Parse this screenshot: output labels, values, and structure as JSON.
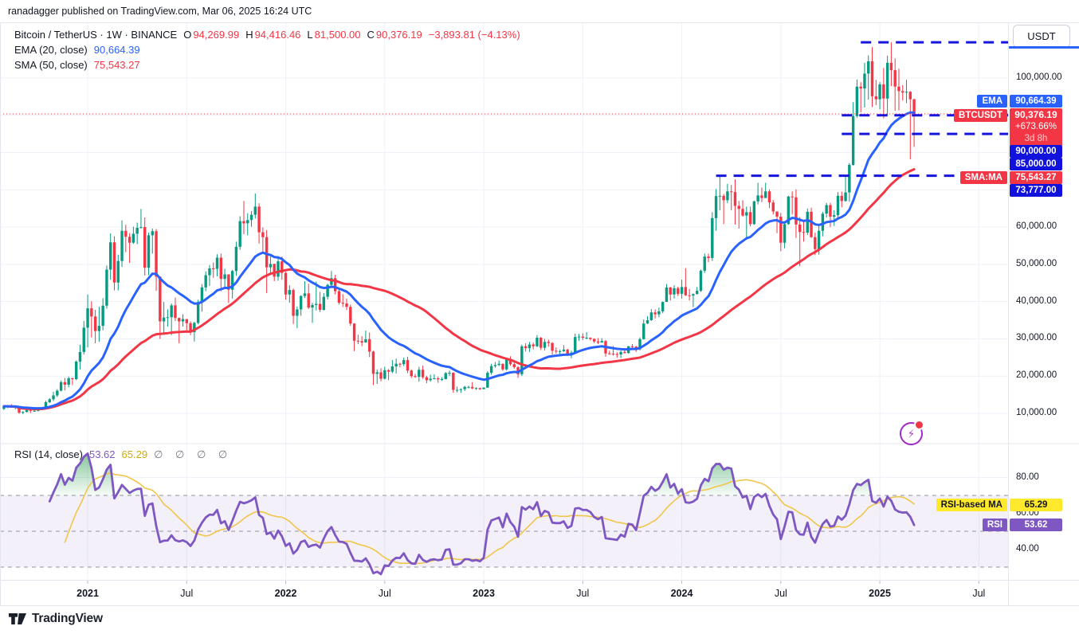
{
  "attribution": "ranadagger published on TradingView.com, Mar 06, 2025 16:24 UTC",
  "header": {
    "title": "Bitcoin / TetherUS · 1W · BINANCE",
    "ohlc": {
      "o_label": "O",
      "o_value": "94,269.99",
      "h_label": "H",
      "h_value": "94,416.46",
      "l_label": "L",
      "l_value": "81,500.00",
      "c_label": "C",
      "c_value": "90,376.19",
      "change": "−3,893.81 (−4.13%)"
    },
    "ema": {
      "label": "EMA (20, close)",
      "value": "90,664.39"
    },
    "sma": {
      "label": "SMA (50, close)",
      "value": "75,543.27"
    }
  },
  "rsi_pane": {
    "label": "RSI (14, close)",
    "rsi_value": "53.62",
    "ma_value": "65.29",
    "hidden_values": "∅ ∅ ∅ ∅"
  },
  "price_scale": {
    "currency_button": "USDT",
    "ticks": [
      [
        100000,
        "100,000.00"
      ],
      [
        60000,
        "60,000.00"
      ],
      [
        50000,
        "50,000.00"
      ],
      [
        40000,
        "40,000.00"
      ],
      [
        30000,
        "30,000.00"
      ],
      [
        20000,
        "20,000.00"
      ],
      [
        10000,
        "10,000.00"
      ]
    ],
    "tags": {
      "ema": "EMA",
      "symbol": "BTCUSDT",
      "sma": "SMA:MA"
    },
    "badges": {
      "ema_value": "90,664.39",
      "symbol_value": "90,376.19",
      "symbol_change_pct": "+673.66%",
      "symbol_countdown": "3d 8h",
      "sma_value": "75,543.27",
      "levels": [
        "90,000.00",
        "85,000.00",
        "73,777.00"
      ]
    }
  },
  "rsi_scale": {
    "ticks": [
      [
        80,
        "80.00"
      ],
      [
        60,
        "60.00"
      ],
      [
        40,
        "40.00"
      ]
    ],
    "tags": {
      "ma": "RSI-based MA",
      "rsi": "RSI"
    },
    "badges": {
      "ma_value": "65.29",
      "rsi_value": "53.62"
    }
  },
  "time_axis": {
    "ticks": [
      [
        22,
        "2021",
        1
      ],
      [
        48,
        "Jul",
        0
      ],
      [
        74,
        "2022",
        1
      ],
      [
        100,
        "Jul",
        0
      ],
      [
        126,
        "2023",
        1
      ],
      [
        152,
        "Jul",
        0
      ],
      [
        178,
        "2024",
        1
      ],
      [
        204,
        "Jul",
        0
      ],
      [
        230,
        "2025",
        1
      ],
      [
        256,
        "Jul",
        0
      ]
    ]
  },
  "footer": {
    "logo_text": "TradingView"
  },
  "colors": {
    "up": "#089981",
    "down": "#f23645",
    "ema": "#2962ff",
    "sma": "#f23645",
    "rsi": "#7e57c2",
    "rsi_ma": "#f0c64a",
    "rsi_ma_badge": "#ffe92c",
    "drawing": "#1515dd",
    "level_badge": "#1212dd",
    "accent_red": "#f23645",
    "accent_blue": "#2962ff",
    "text": "#131722",
    "muted": "#787b86",
    "grid": "#eef1f7",
    "border": "#e4e7ee"
  },
  "chart_data": {
    "type": "candlestick",
    "title": "Bitcoin / TetherUS weekly (BINANCE) with EMA(20), SMA(50), RSI(14)",
    "symbol": "BTCUSDT",
    "exchange": "BINANCE",
    "timeframe": "1W",
    "unit": 1000,
    "start_week": "2020-08-03",
    "first_open": 11.2,
    "candles_hlc": [
      [
        12.1,
        10.9,
        11.9
      ],
      [
        12.0,
        11.4,
        11.9
      ],
      [
        12.4,
        11.5,
        11.7
      ],
      [
        11.8,
        11.1,
        11.7
      ],
      [
        12.0,
        9.9,
        10.2
      ],
      [
        10.6,
        9.8,
        10.4
      ],
      [
        11.1,
        10.2,
        10.9
      ],
      [
        11.0,
        10.1,
        10.7
      ],
      [
        10.95,
        10.4,
        10.7
      ],
      [
        11.5,
        10.5,
        11.4
      ],
      [
        11.7,
        11.2,
        11.5
      ],
      [
        13.4,
        11.4,
        13.0
      ],
      [
        14.1,
        12.8,
        13.8
      ],
      [
        15.8,
        13.3,
        14.8
      ],
      [
        16.5,
        14.4,
        16.1
      ],
      [
        18.8,
        15.9,
        18.4
      ],
      [
        19.5,
        16.2,
        17.7
      ],
      [
        19.9,
        17.0,
        19.4
      ],
      [
        19.6,
        17.6,
        19.2
      ],
      [
        24.2,
        18.9,
        23.9
      ],
      [
        28.4,
        21.8,
        26.5
      ],
      [
        34.8,
        25.8,
        33.0
      ],
      [
        41.9,
        27.7,
        38.2
      ],
      [
        40.1,
        30.4,
        36.0
      ],
      [
        37.8,
        28.8,
        32.1
      ],
      [
        38.6,
        29.2,
        33.5
      ],
      [
        40.9,
        32.3,
        38.9
      ],
      [
        49.7,
        38.1,
        48.6
      ],
      [
        58.3,
        45.9,
        55.9
      ],
      [
        57.5,
        43.0,
        45.1
      ],
      [
        52.6,
        43.0,
        50.9
      ],
      [
        61.8,
        49.3,
        59.0
      ],
      [
        60.6,
        53.3,
        57.4
      ],
      [
        58.4,
        50.4,
        55.8
      ],
      [
        60.1,
        55.5,
        58.2
      ],
      [
        61.2,
        55.4,
        59.8
      ],
      [
        64.9,
        59.6,
        60.0
      ],
      [
        62.6,
        47.0,
        49.1
      ],
      [
        58.5,
        47.1,
        57.8
      ],
      [
        59.6,
        52.9,
        58.9
      ],
      [
        59.5,
        42.9,
        46.7
      ],
      [
        46.8,
        30.0,
        34.7
      ],
      [
        39.9,
        31.1,
        35.7
      ],
      [
        37.9,
        33.3,
        35.8
      ],
      [
        39.5,
        31.0,
        39.0
      ],
      [
        41.1,
        34.8,
        35.6
      ],
      [
        35.7,
        28.8,
        34.7
      ],
      [
        36.6,
        33.3,
        35.3
      ],
      [
        35.3,
        32.3,
        34.2
      ],
      [
        34.7,
        31.0,
        31.8
      ],
      [
        34.6,
        29.3,
        34.3
      ],
      [
        40.5,
        33.9,
        39.9
      ],
      [
        44.7,
        37.3,
        43.8
      ],
      [
        48.1,
        42.8,
        47.1
      ],
      [
        49.8,
        44.2,
        48.9
      ],
      [
        50.5,
        46.4,
        48.8
      ],
      [
        52.7,
        46.8,
        51.8
      ],
      [
        52.9,
        42.8,
        46.1
      ],
      [
        48.8,
        43.4,
        47.3
      ],
      [
        47.3,
        39.6,
        43.2
      ],
      [
        48.5,
        40.8,
        48.2
      ],
      [
        56.1,
        46.9,
        54.7
      ],
      [
        62.9,
        53.9,
        61.6
      ],
      [
        67.0,
        58.1,
        61.0
      ],
      [
        63.7,
        57.8,
        61.9
      ],
      [
        64.3,
        60.1,
        63.3
      ],
      [
        69.0,
        62.3,
        65.5
      ],
      [
        66.4,
        55.6,
        58.6
      ],
      [
        59.9,
        53.5,
        57.3
      ],
      [
        59.2,
        42.3,
        49.2
      ],
      [
        52.1,
        47.1,
        50.1
      ],
      [
        50.2,
        45.5,
        46.7
      ],
      [
        51.9,
        45.6,
        50.8
      ],
      [
        52.1,
        45.9,
        47.7
      ],
      [
        48.0,
        40.5,
        41.9
      ],
      [
        44.4,
        39.7,
        43.1
      ],
      [
        43.5,
        34.0,
        36.2
      ],
      [
        38.7,
        32.9,
        37.9
      ],
      [
        41.7,
        36.2,
        41.5
      ],
      [
        45.5,
        41.0,
        42.2
      ],
      [
        44.8,
        38.0,
        38.4
      ],
      [
        39.7,
        34.3,
        39.1
      ],
      [
        45.4,
        37.6,
        39.4
      ],
      [
        42.6,
        37.2,
        37.8
      ],
      [
        42.3,
        37.6,
        41.3
      ],
      [
        44.8,
        40.6,
        44.5
      ],
      [
        48.2,
        44.3,
        46.3
      ],
      [
        47.2,
        41.9,
        42.8
      ],
      [
        43.4,
        39.2,
        39.7
      ],
      [
        42.0,
        38.6,
        39.5
      ],
      [
        40.8,
        37.7,
        38.6
      ],
      [
        39.2,
        33.5,
        34.1
      ],
      [
        34.2,
        26.7,
        29.5
      ],
      [
        31.1,
        28.6,
        29.4
      ],
      [
        30.7,
        28.0,
        29.0
      ],
      [
        32.2,
        29.1,
        29.9
      ],
      [
        31.7,
        25.1,
        26.6
      ],
      [
        26.8,
        17.6,
        20.6
      ],
      [
        21.8,
        17.9,
        21.0
      ],
      [
        22.1,
        18.6,
        19.3
      ],
      [
        22.5,
        19.1,
        21.6
      ],
      [
        21.9,
        18.9,
        21.2
      ],
      [
        24.3,
        20.8,
        22.6
      ],
      [
        24.7,
        20.7,
        23.3
      ],
      [
        23.6,
        22.4,
        23.2
      ],
      [
        25.0,
        22.7,
        24.3
      ],
      [
        25.2,
        20.8,
        21.5
      ],
      [
        21.8,
        19.5,
        20.0
      ],
      [
        20.6,
        19.5,
        19.8
      ],
      [
        22.5,
        18.5,
        21.7
      ],
      [
        22.8,
        19.3,
        19.7
      ],
      [
        20.1,
        18.1,
        18.9
      ],
      [
        20.4,
        18.5,
        19.3
      ],
      [
        20.5,
        19.1,
        19.4
      ],
      [
        19.9,
        18.2,
        19.1
      ],
      [
        19.7,
        18.7,
        19.2
      ],
      [
        21.1,
        19.1,
        20.8
      ],
      [
        21.5,
        20.0,
        20.9
      ],
      [
        21.0,
        15.5,
        16.3
      ],
      [
        17.2,
        15.6,
        16.3
      ],
      [
        16.7,
        15.5,
        16.5
      ],
      [
        17.4,
        16.0,
        17.1
      ],
      [
        17.4,
        16.7,
        17.1
      ],
      [
        18.4,
        16.5,
        16.7
      ],
      [
        17.0,
        16.3,
        16.8
      ],
      [
        16.9,
        16.3,
        16.5
      ],
      [
        17.0,
        16.5,
        16.9
      ],
      [
        21.3,
        16.9,
        20.9
      ],
      [
        23.3,
        20.4,
        22.7
      ],
      [
        23.8,
        22.3,
        23.0
      ],
      [
        24.2,
        22.7,
        23.3
      ],
      [
        23.4,
        21.4,
        21.8
      ],
      [
        25.0,
        21.5,
        24.6
      ],
      [
        25.3,
        22.8,
        23.2
      ],
      [
        23.9,
        22.0,
        22.4
      ],
      [
        22.7,
        19.5,
        20.5
      ],
      [
        28.4,
        20.0,
        28.0
      ],
      [
        28.8,
        26.6,
        27.5
      ],
      [
        29.2,
        26.5,
        28.5
      ],
      [
        29.0,
        27.2,
        28.0
      ],
      [
        31.0,
        27.8,
        30.3
      ],
      [
        30.5,
        27.0,
        27.6
      ],
      [
        30.0,
        26.9,
        29.2
      ],
      [
        29.8,
        27.9,
        28.9
      ],
      [
        29.1,
        25.8,
        26.8
      ],
      [
        27.7,
        26.0,
        26.7
      ],
      [
        27.1,
        25.9,
        26.7
      ],
      [
        28.3,
        26.5,
        27.1
      ],
      [
        27.4,
        25.4,
        25.9
      ],
      [
        26.8,
        24.8,
        26.3
      ],
      [
        31.4,
        26.2,
        30.5
      ],
      [
        31.3,
        29.5,
        30.6
      ],
      [
        31.5,
        29.7,
        30.3
      ],
      [
        31.8,
        29.9,
        30.3
      ],
      [
        30.4,
        29.6,
        30.0
      ],
      [
        30.1,
        28.9,
        29.3
      ],
      [
        30.2,
        28.6,
        29.0
      ],
      [
        30.2,
        29.1,
        29.4
      ],
      [
        29.7,
        25.2,
        26.1
      ],
      [
        26.8,
        25.7,
        26.0
      ],
      [
        28.1,
        25.5,
        25.9
      ],
      [
        26.4,
        24.9,
        25.8
      ],
      [
        26.9,
        24.8,
        26.5
      ],
      [
        27.5,
        26.1,
        26.2
      ],
      [
        28.1,
        26.0,
        28.0
      ],
      [
        28.6,
        27.2,
        27.9
      ],
      [
        28.1,
        26.5,
        27.2
      ],
      [
        30.4,
        26.9,
        29.9
      ],
      [
        35.2,
        29.8,
        34.1
      ],
      [
        36.1,
        34.0,
        35.0
      ],
      [
        38.0,
        34.8,
        37.1
      ],
      [
        37.9,
        35.5,
        36.6
      ],
      [
        38.4,
        35.8,
        37.4
      ],
      [
        40.0,
        36.9,
        39.9
      ],
      [
        44.7,
        39.9,
        43.8
      ],
      [
        43.9,
        40.3,
        41.9
      ],
      [
        44.4,
        40.8,
        43.6
      ],
      [
        44.0,
        41.5,
        42.1
      ],
      [
        45.9,
        40.8,
        43.9
      ],
      [
        49.0,
        41.5,
        41.7
      ],
      [
        43.4,
        40.3,
        41.6
      ],
      [
        42.2,
        38.5,
        42.0
      ],
      [
        43.9,
        41.9,
        42.9
      ],
      [
        48.6,
        42.6,
        48.3
      ],
      [
        52.9,
        47.7,
        52.1
      ],
      [
        52.9,
        50.6,
        51.7
      ],
      [
        64.0,
        50.9,
        62.4
      ],
      [
        70.2,
        59.0,
        68.3
      ],
      [
        73.8,
        64.5,
        68.4
      ],
      [
        68.9,
        60.8,
        67.2
      ],
      [
        71.6,
        66.4,
        69.6
      ],
      [
        71.3,
        64.5,
        69.4
      ],
      [
        72.8,
        60.7,
        65.7
      ],
      [
        67.0,
        59.6,
        64.9
      ],
      [
        67.2,
        62.8,
        63.1
      ],
      [
        65.5,
        56.6,
        64.0
      ],
      [
        65.5,
        60.2,
        60.8
      ],
      [
        67.1,
        60.6,
        66.9
      ],
      [
        71.9,
        66.1,
        68.5
      ],
      [
        70.6,
        66.7,
        67.8
      ],
      [
        71.9,
        68.5,
        69.6
      ],
      [
        70.1,
        65.1,
        66.6
      ],
      [
        67.3,
        63.4,
        64.2
      ],
      [
        63.1,
        58.4,
        62.8
      ],
      [
        63.8,
        53.5,
        55.8
      ],
      [
        61.5,
        54.3,
        60.8
      ],
      [
        68.4,
        60.6,
        68.2
      ],
      [
        69.6,
        63.4,
        68.0
      ],
      [
        70.1,
        57.1,
        60.7
      ],
      [
        62.7,
        49.5,
        58.7
      ],
      [
        61.8,
        56.1,
        58.5
      ],
      [
        65.0,
        57.9,
        64.1
      ],
      [
        65.2,
        57.1,
        57.3
      ],
      [
        58.5,
        52.5,
        54.1
      ],
      [
        60.6,
        52.6,
        59.0
      ],
      [
        64.1,
        57.5,
        63.6
      ],
      [
        66.5,
        62.6,
        65.9
      ],
      [
        66.5,
        60.0,
        62.8
      ],
      [
        64.5,
        60.3,
        63.2
      ],
      [
        69.4,
        62.5,
        68.4
      ],
      [
        69.5,
        65.3,
        67.0
      ],
      [
        73.6,
        66.8,
        69.3
      ],
      [
        77.2,
        66.8,
        76.7
      ],
      [
        93.5,
        76.5,
        89.8
      ],
      [
        99.6,
        89.4,
        97.7
      ],
      [
        98.9,
        90.8,
        97.2
      ],
      [
        104.1,
        92.1,
        101.2
      ],
      [
        106.1,
        94.2,
        104.5
      ],
      [
        108.3,
        92.2,
        95.1
      ],
      [
        99.5,
        92.7,
        94.3
      ],
      [
        98.9,
        91.6,
        98.3
      ],
      [
        102.7,
        89.2,
        94.5
      ],
      [
        106.0,
        89.7,
        104.1
      ],
      [
        109.6,
        97.8,
        102.1
      ],
      [
        105.3,
        91.2,
        97.7
      ],
      [
        102.5,
        91.3,
        96.5
      ],
      [
        98.1,
        94.0,
        96.1
      ],
      [
        99.5,
        93.3,
        96.3
      ],
      [
        96.5,
        78.2,
        94.3
      ],
      [
        94.42,
        81.5,
        90.38
      ]
    ],
    "indicators": {
      "ema_period": 20,
      "sma_period": 50,
      "rsi_period": 14,
      "rsi_ma_period": 14,
      "rsi_levels": [
        70,
        50,
        30
      ],
      "ema_last": 90664.39,
      "sma_last": 75543.27,
      "rsi_last": 53.62,
      "rsi_ma_last": 65.29
    },
    "last_price": 90376.19,
    "price_axis": {
      "min": 10000,
      "max": 100000,
      "grid_step": 10000
    },
    "rsi_axis": {
      "grid": [
        80,
        60,
        40
      ]
    },
    "drawings": {
      "hlines": [
        {
          "price": 109600,
          "from_week": 225
        },
        {
          "price": 90000,
          "from_week": 220
        },
        {
          "price": 85000,
          "from_week": 220
        },
        {
          "price": 73777,
          "from_week": 187
        }
      ]
    }
  }
}
